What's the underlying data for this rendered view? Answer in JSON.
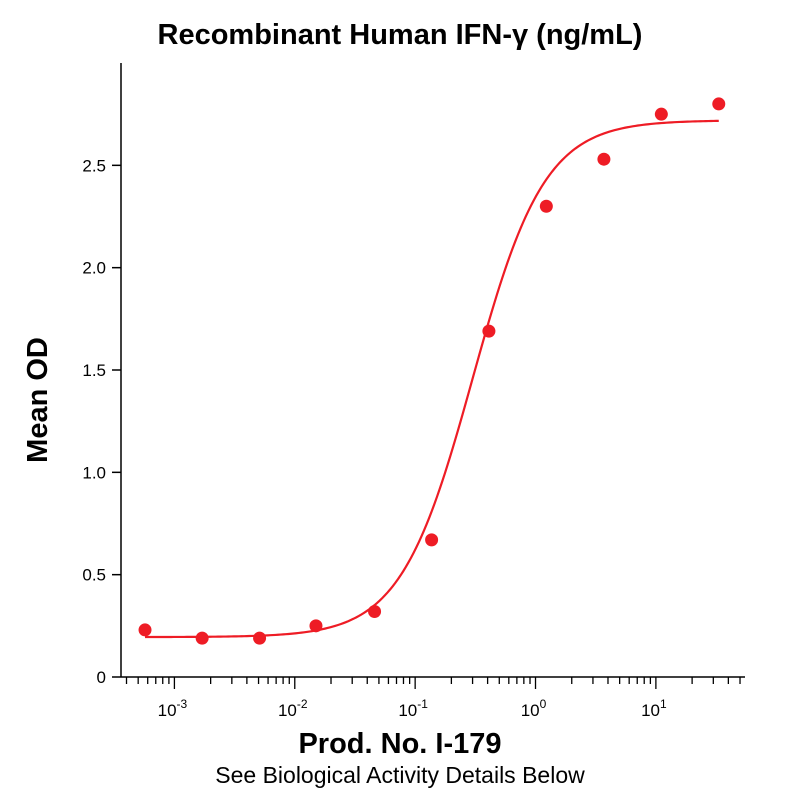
{
  "chart_data": {
    "type": "scatter",
    "title": "Recombinant Human IFN-γ (ng/mL)",
    "xlabel": "Prod. No. I-179",
    "ylabel": "Mean OD",
    "footnote": "See Biological Activity Details Below",
    "x_scale": "log",
    "xlim": [
      0.00036,
      55
    ],
    "ylim": [
      0,
      3.0
    ],
    "x_ticks": [
      {
        "value": 0.001,
        "base": "10",
        "exp": "-3"
      },
      {
        "value": 0.01,
        "base": "10",
        "exp": "-2"
      },
      {
        "value": 0.1,
        "base": "10",
        "exp": "-1"
      },
      {
        "value": 1,
        "base": "10",
        "exp": "0"
      },
      {
        "value": 10,
        "base": "10",
        "exp": "1"
      }
    ],
    "y_ticks": [
      {
        "value": 0,
        "label": "0"
      },
      {
        "value": 0.5,
        "label": "0.5"
      },
      {
        "value": 1.0,
        "label": "1.0"
      },
      {
        "value": 1.5,
        "label": "1.5"
      },
      {
        "value": 2.0,
        "label": "2.0"
      },
      {
        "value": 2.5,
        "label": "2.5"
      }
    ],
    "grid": false,
    "color": "#ee1c25",
    "series": [
      {
        "points": [
          {
            "x": 0.00057,
            "y": 0.23
          },
          {
            "x": 0.0017,
            "y": 0.19
          },
          {
            "x": 0.0051,
            "y": 0.19
          },
          {
            "x": 0.015,
            "y": 0.25
          },
          {
            "x": 0.046,
            "y": 0.32
          },
          {
            "x": 0.137,
            "y": 0.67
          },
          {
            "x": 0.41,
            "y": 1.69
          },
          {
            "x": 1.23,
            "y": 2.3
          },
          {
            "x": 3.7,
            "y": 2.53
          },
          {
            "x": 11.1,
            "y": 2.75
          },
          {
            "x": 33.3,
            "y": 2.8
          }
        ],
        "fit": {
          "model": "4PL",
          "bottom": 0.195,
          "top": 2.72,
          "ec50": 0.3,
          "hill": 1.45
        }
      }
    ]
  }
}
